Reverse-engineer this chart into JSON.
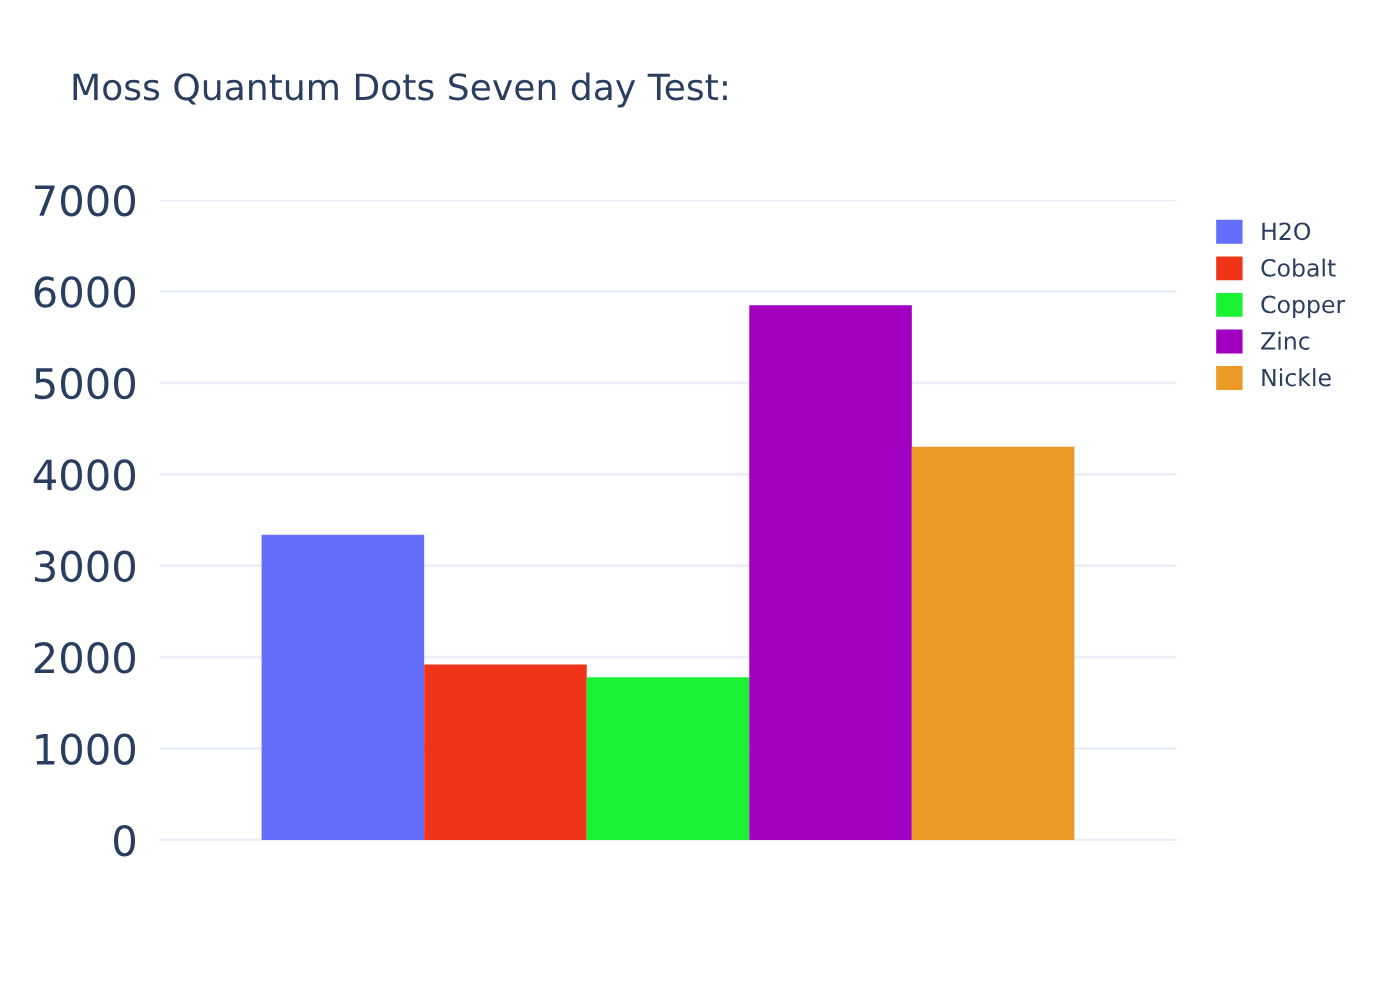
{
  "chart_data": {
    "type": "bar",
    "title": "Moss Quantum Dots Seven day Test:",
    "categories": [
      null
    ],
    "series": [
      {
        "name": "H2O",
        "color": "#636efa",
        "values": [
          3340
        ]
      },
      {
        "name": "Cobalt",
        "color": "#ef3419",
        "values": [
          1920
        ]
      },
      {
        "name": "Copper",
        "color": "#19f233",
        "values": [
          1780
        ]
      },
      {
        "name": "Zinc",
        "color": "#a200c0",
        "values": [
          5850
        ]
      },
      {
        "name": "Nickle",
        "color": "#ec9a26",
        "values": [
          4300
        ]
      }
    ],
    "ylim": [
      0,
      7000
    ],
    "yticks": [
      0,
      1000,
      2000,
      3000,
      4000,
      5000,
      6000,
      7000
    ],
    "grid": "y",
    "legend": "top right"
  }
}
